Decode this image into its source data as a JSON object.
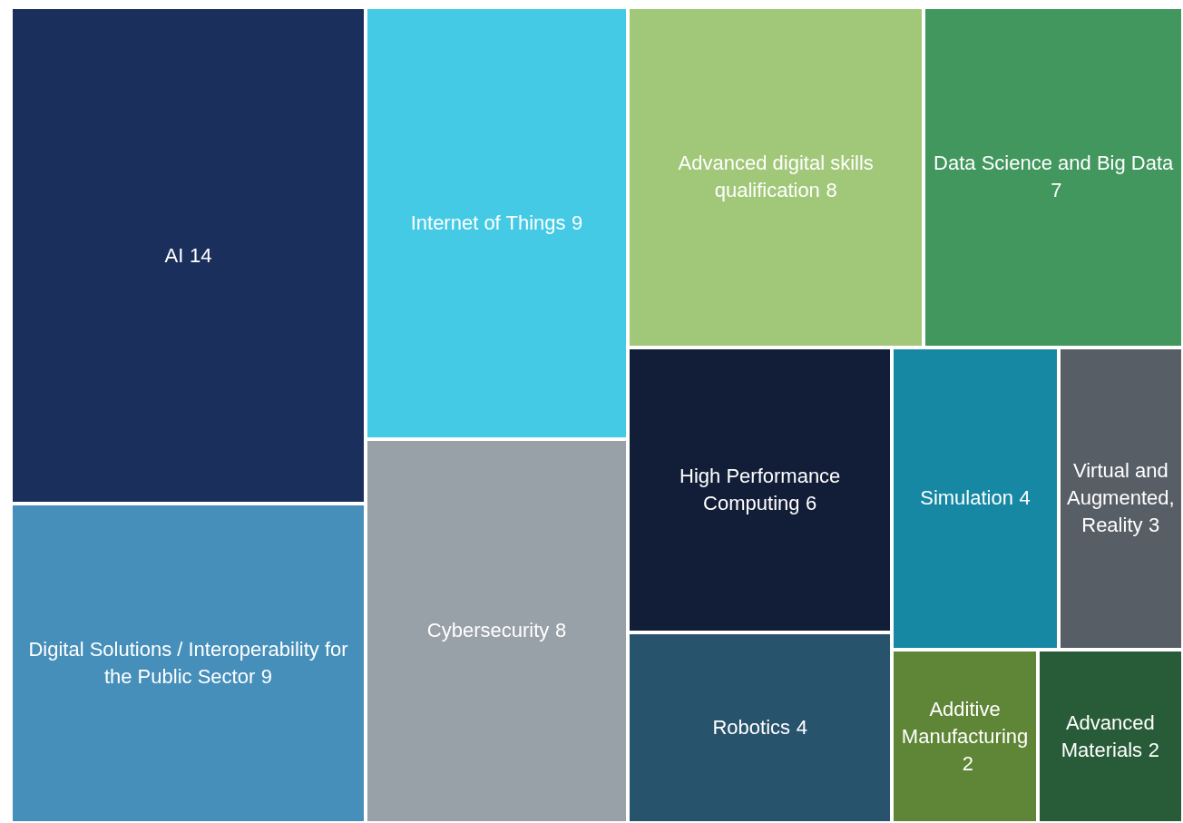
{
  "chart_data": {
    "type": "other",
    "categories": [
      "AI",
      "Digital Solutions / Interoperability for the Public Sector",
      "Internet of Things",
      "Cybersecurity",
      "Advanced digital skills qualification",
      "Data Science and Big Data",
      "High Performance Computing",
      "Robotics",
      "Simulation",
      "Virtual and Augmented, Reality",
      "Additive Manufacturing",
      "Advanced Materials"
    ],
    "values": [
      14,
      9,
      9,
      8,
      8,
      7,
      6,
      4,
      4,
      3,
      2,
      2
    ],
    "data_labels": true,
    "colors": [
      "#1b2f5c",
      "#458fba",
      "#45cae6",
      "#98a0a8",
      "#a1c878",
      "#42975e",
      "#121d38",
      "#28536d",
      "#1688a3",
      "#575e66",
      "#5f8536",
      "#285c38"
    ]
  }
}
